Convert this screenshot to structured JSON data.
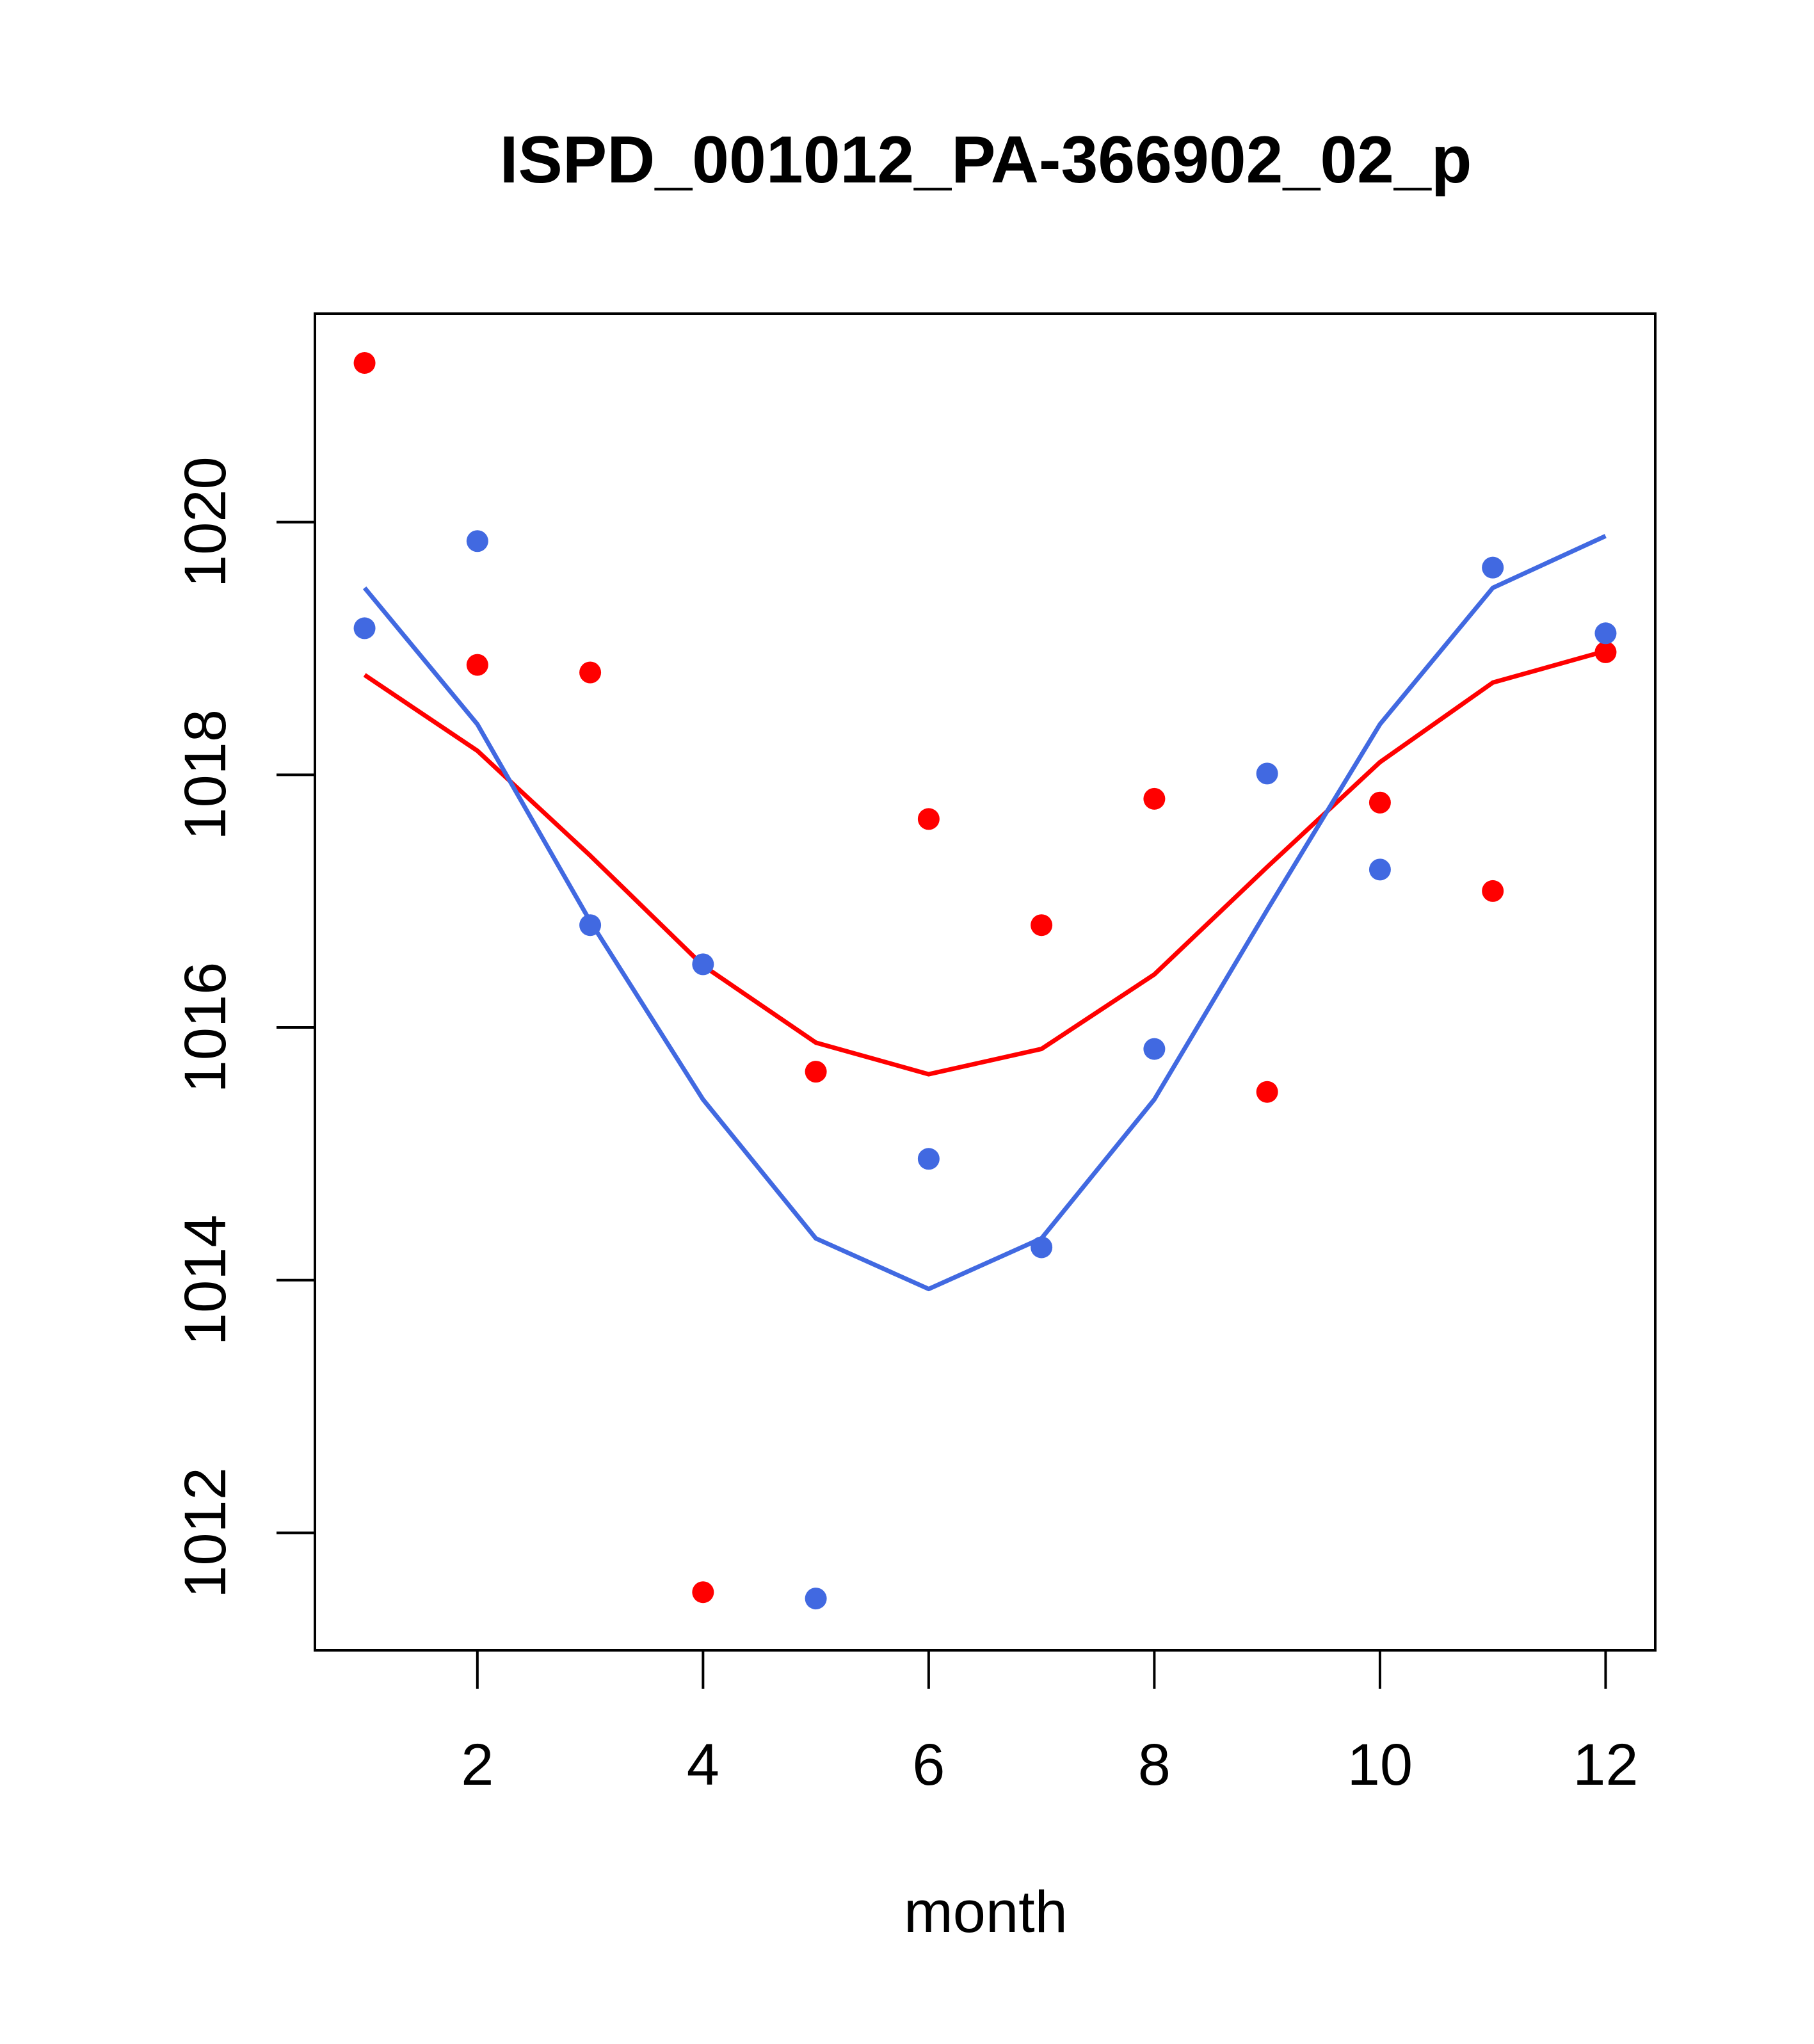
{
  "chart_data": {
    "type": "scatter",
    "title": "ISPD_001012_PA-366902_02_p",
    "xlabel": "month",
    "ylabel": "",
    "xlim": [
      0.56,
      12.44
    ],
    "ylim": [
      1011.07,
      1021.65
    ],
    "xticks": [
      2,
      4,
      6,
      8,
      10,
      12
    ],
    "yticks": [
      1012,
      1014,
      1016,
      1018,
      1020
    ],
    "grid": false,
    "series": [
      {
        "color": "#ff0000",
        "points_x": [
          1,
          2,
          3,
          4,
          5,
          6,
          7,
          8,
          9,
          10,
          11,
          12
        ],
        "points_y": [
          1021.26,
          1018.87,
          1018.81,
          1011.53,
          1015.65,
          1017.65,
          1016.81,
          1017.81,
          1015.49,
          1017.78,
          1017.08,
          1018.97
        ],
        "line_x": [
          1,
          2,
          3,
          4,
          5,
          6,
          7,
          8,
          9,
          10,
          11,
          12
        ],
        "line_y": [
          1018.79,
          1018.19,
          1017.36,
          1016.49,
          1015.88,
          1015.63,
          1015.83,
          1016.42,
          1017.27,
          1018.1,
          1018.73,
          1018.98
        ]
      },
      {
        "color": "#4169e1",
        "points_x": [
          1,
          2,
          3,
          4,
          5,
          6,
          7,
          8,
          9,
          10,
          11,
          12
        ],
        "points_y": [
          1019.16,
          1019.85,
          1016.81,
          1016.5,
          1011.48,
          1014.96,
          1014.26,
          1015.83,
          1018.01,
          1017.25,
          1019.64,
          1019.12
        ],
        "line_x": [
          1,
          2,
          3,
          4,
          5,
          6,
          7,
          8,
          9,
          10,
          11,
          12
        ],
        "line_y": [
          1019.48,
          1018.4,
          1016.84,
          1015.43,
          1014.33,
          1013.93,
          1014.33,
          1015.43,
          1016.93,
          1018.4,
          1019.48,
          1019.89
        ]
      }
    ]
  }
}
